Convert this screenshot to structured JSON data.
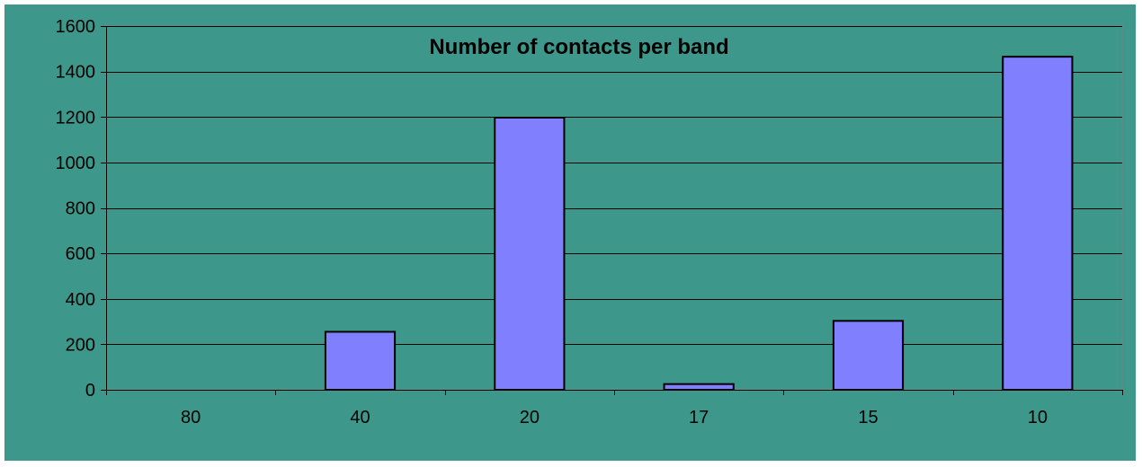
{
  "chart_data": {
    "type": "bar",
    "title": "Number of contacts per band",
    "xlabel": "",
    "ylabel": "",
    "categories": [
      "80",
      "40",
      "20",
      "17",
      "15",
      "10"
    ],
    "values": [
      0,
      255,
      1197,
      25,
      303,
      1465
    ],
    "ylim": [
      0,
      1600
    ],
    "yticks": [
      0,
      200,
      400,
      600,
      800,
      1000,
      1200,
      1400,
      1600
    ],
    "ytick_labels": [
      "0",
      "200",
      "400",
      "600",
      "800",
      "1000",
      "1200",
      "1400",
      "1600"
    ],
    "grid": true,
    "legend": "none"
  },
  "colors": {
    "background": "#3d988b",
    "plot_background": "#3d988b",
    "bar_fill": "#8080ff",
    "bar_stroke": "#000000",
    "gridline": "#000000",
    "axis": "#000000"
  }
}
